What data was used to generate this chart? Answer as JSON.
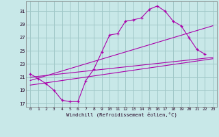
{
  "xlabel": "Windchill (Refroidissement éolien,°C)",
  "bg_color": "#c8e8e8",
  "grid_color": "#a0c8c8",
  "line_color": "#aa00aa",
  "xlim": [
    -0.5,
    23.5
  ],
  "ylim": [
    16.5,
    32.5
  ],
  "yticks": [
    17,
    19,
    21,
    23,
    25,
    27,
    29,
    31
  ],
  "xticks": [
    0,
    1,
    2,
    3,
    4,
    5,
    6,
    7,
    8,
    9,
    10,
    11,
    12,
    13,
    14,
    15,
    16,
    17,
    18,
    19,
    20,
    21,
    22,
    23
  ],
  "series1_x": [
    0,
    1,
    2,
    3,
    4,
    5,
    6,
    7,
    8,
    9,
    10,
    11,
    12,
    13,
    14,
    15,
    16,
    17,
    18,
    19,
    20,
    21,
    22
  ],
  "series1_y": [
    21.5,
    20.8,
    20.0,
    19.0,
    17.5,
    17.3,
    17.3,
    20.5,
    22.2,
    24.8,
    27.4,
    27.6,
    29.5,
    29.7,
    30.0,
    31.3,
    31.8,
    31.0,
    29.5,
    28.8,
    27.0,
    25.2,
    24.5
  ],
  "series2_x": [
    0,
    23
  ],
  "series2_y": [
    21.0,
    24.0
  ],
  "series3_x": [
    0,
    23
  ],
  "series3_y": [
    20.5,
    28.8
  ],
  "series4_x": [
    0,
    23
  ],
  "series4_y": [
    19.8,
    23.8
  ]
}
